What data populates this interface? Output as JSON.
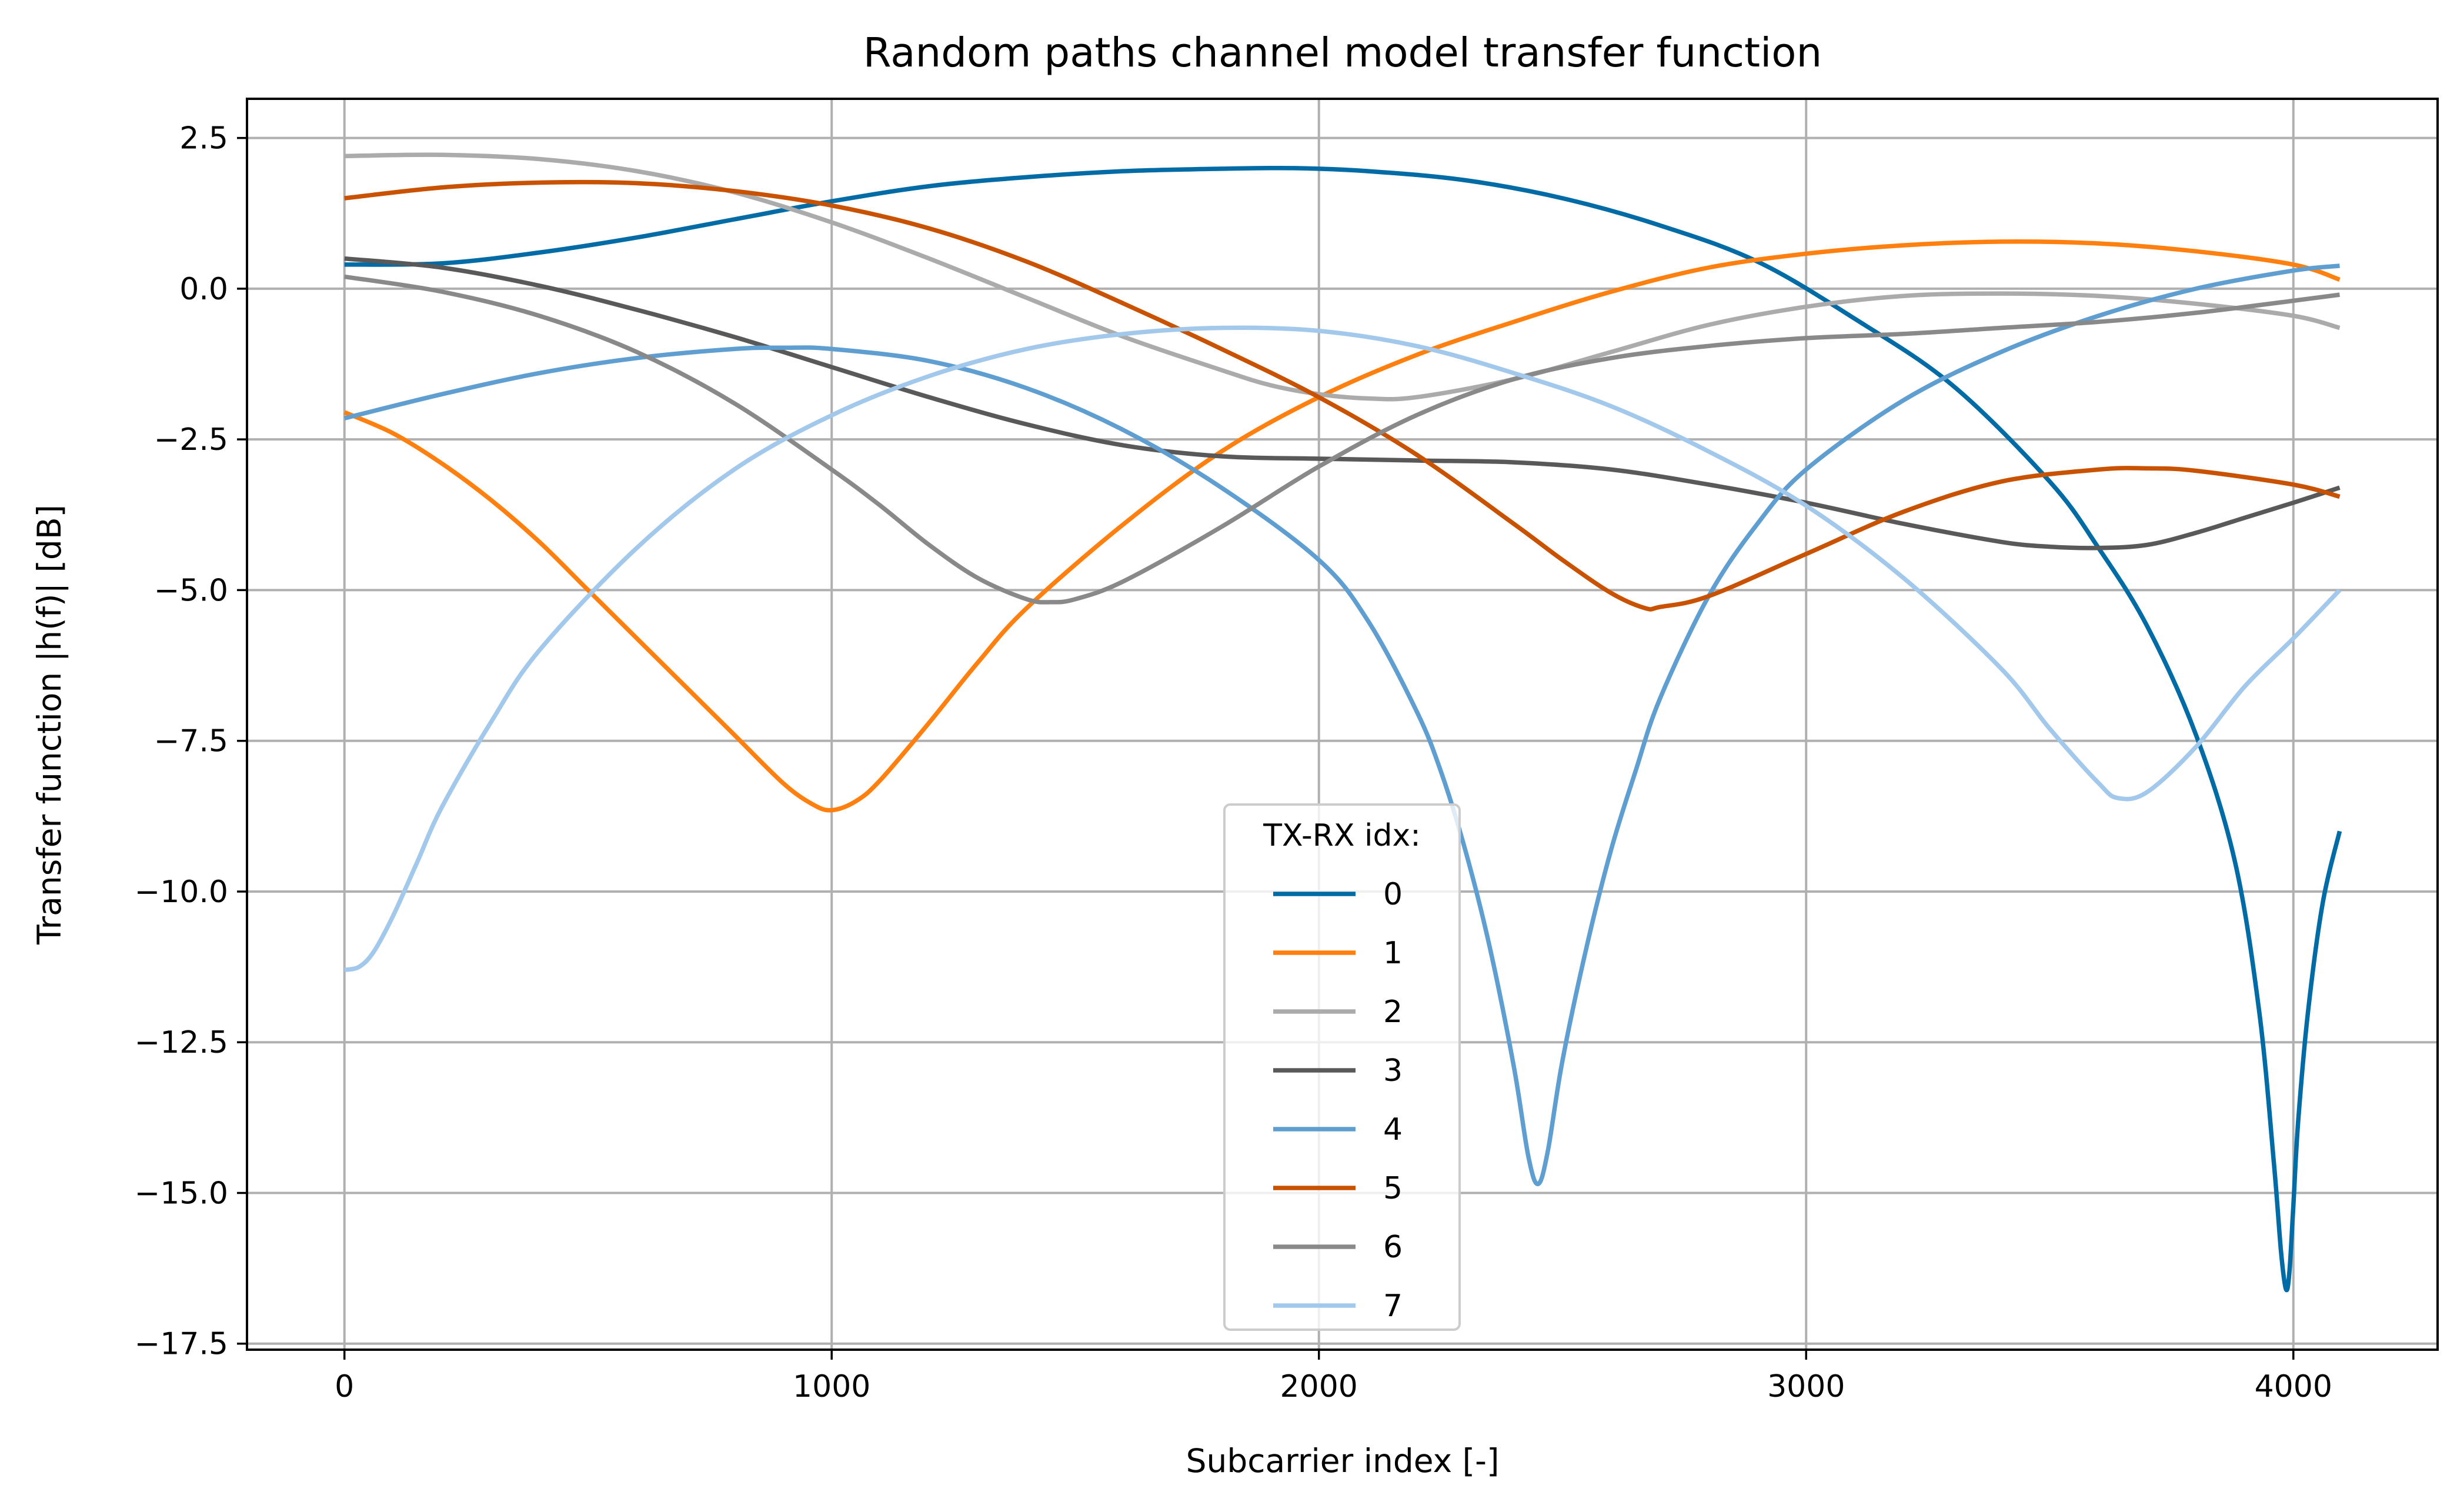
{
  "chart_data": {
    "type": "line",
    "title": "Random paths channel model transfer function",
    "xlabel": "Subcarrier index [-]",
    "ylabel": "Transfer function |h(f)| [dB]",
    "xlim": [
      -200,
      4296
    ],
    "ylim": [
      -17.6,
      3.15
    ],
    "xticks": [
      0,
      1000,
      2000,
      3000,
      4000
    ],
    "xtick_labels": [
      "0",
      "1000",
      "2000",
      "3000",
      "4000"
    ],
    "yticks": [
      2.5,
      0,
      -2.5,
      -5,
      -7.5,
      -10,
      -12.5,
      -15,
      -17.5
    ],
    "ytick_labels": [
      "2.5",
      "0.0",
      "−2.5",
      "−5.0",
      "−7.5",
      "−10.0",
      "−12.5",
      "−15.0",
      "−17.5"
    ],
    "grid": true,
    "legend": {
      "title": "TX-RX idx:",
      "placement": "lower-center"
    },
    "series": [
      {
        "name": "0",
        "color": "#006BA4",
        "x": [
          0,
          200,
          400,
          600,
          800,
          1000,
          1200,
          1400,
          1600,
          1800,
          1950,
          2100,
          2300,
          2500,
          2700,
          2900,
          3100,
          3300,
          3500,
          3600,
          3700,
          3800,
          3880,
          3930,
          3960,
          3975,
          3985,
          3992,
          4000,
          4010,
          4030,
          4060,
          4095
        ],
        "y": [
          0.4,
          0.42,
          0.6,
          0.85,
          1.15,
          1.45,
          1.7,
          1.85,
          1.95,
          1.99,
          2.0,
          1.95,
          1.8,
          1.5,
          1.05,
          0.45,
          -0.5,
          -1.6,
          -3.2,
          -4.3,
          -5.6,
          -7.4,
          -9.5,
          -12.0,
          -14.5,
          -16.0,
          -16.6,
          -16.3,
          -15.2,
          -13.8,
          -12.0,
          -10.2,
          -9.0
        ]
      },
      {
        "name": "1",
        "color": "#FF800E",
        "x": [
          0,
          100,
          200,
          300,
          400,
          500,
          600,
          700,
          800,
          900,
          960,
          1000,
          1050,
          1100,
          1200,
          1300,
          1400,
          1600,
          1800,
          2000,
          2200,
          2400,
          2600,
          2800,
          3000,
          3200,
          3400,
          3600,
          3800,
          4000,
          4095
        ],
        "y": [
          -2.05,
          -2.4,
          -2.9,
          -3.5,
          -4.2,
          -5.0,
          -5.8,
          -6.6,
          -7.4,
          -8.2,
          -8.55,
          -8.65,
          -8.5,
          -8.15,
          -7.2,
          -6.2,
          -5.3,
          -3.9,
          -2.7,
          -1.8,
          -1.1,
          -0.55,
          -0.05,
          0.35,
          0.58,
          0.72,
          0.78,
          0.75,
          0.62,
          0.4,
          0.15
        ]
      },
      {
        "name": "2",
        "color": "#ABABAB",
        "x": [
          0,
          200,
          400,
          600,
          800,
          1000,
          1200,
          1400,
          1600,
          1800,
          1900,
          2000,
          2100,
          2200,
          2400,
          2600,
          2800,
          3000,
          3200,
          3400,
          3600,
          3800,
          4000,
          4095
        ],
        "y": [
          2.2,
          2.22,
          2.15,
          1.95,
          1.6,
          1.1,
          0.5,
          -0.15,
          -0.8,
          -1.35,
          -1.6,
          -1.75,
          -1.82,
          -1.8,
          -1.5,
          -1.05,
          -0.6,
          -0.3,
          -0.12,
          -0.08,
          -0.12,
          -0.25,
          -0.45,
          -0.65
        ]
      },
      {
        "name": "3",
        "color": "#595959",
        "x": [
          0,
          200,
          400,
          600,
          800,
          1000,
          1200,
          1400,
          1600,
          1800,
          2000,
          2200,
          2400,
          2600,
          2800,
          3000,
          3200,
          3400,
          3500,
          3600,
          3700,
          3800,
          3900,
          4000,
          4095
        ],
        "y": [
          0.5,
          0.35,
          0.05,
          -0.35,
          -0.8,
          -1.3,
          -1.8,
          -2.25,
          -2.6,
          -2.78,
          -2.82,
          -2.85,
          -2.88,
          -3.0,
          -3.25,
          -3.55,
          -3.9,
          -4.2,
          -4.28,
          -4.3,
          -4.25,
          -4.05,
          -3.8,
          -3.55,
          -3.3
        ]
      },
      {
        "name": "4",
        "color": "#5F9ED1",
        "x": [
          0,
          200,
          400,
          600,
          800,
          900,
          1000,
          1200,
          1400,
          1600,
          1800,
          2000,
          2100,
          2200,
          2250,
          2300,
          2350,
          2400,
          2430,
          2450,
          2470,
          2500,
          2550,
          2600,
          2650,
          2700,
          2800,
          2900,
          3000,
          3200,
          3400,
          3600,
          3800,
          4000,
          4095
        ],
        "y": [
          -2.15,
          -1.75,
          -1.4,
          -1.15,
          -1.0,
          -0.98,
          -1.0,
          -1.2,
          -1.65,
          -2.35,
          -3.3,
          -4.5,
          -5.5,
          -7.0,
          -8.0,
          -9.3,
          -10.9,
          -12.9,
          -14.4,
          -14.85,
          -14.3,
          -12.8,
          -10.9,
          -9.3,
          -8.0,
          -6.8,
          -5.1,
          -3.9,
          -3.0,
          -1.85,
          -1.05,
          -0.45,
          0.0,
          0.3,
          0.38
        ]
      },
      {
        "name": "5",
        "color": "#C85200",
        "x": [
          0,
          200,
          400,
          600,
          800,
          1000,
          1200,
          1400,
          1600,
          1800,
          2000,
          2200,
          2400,
          2500,
          2600,
          2670,
          2700,
          2800,
          3000,
          3200,
          3400,
          3600,
          3700,
          3800,
          4000,
          4095
        ],
        "y": [
          1.5,
          1.68,
          1.76,
          1.75,
          1.62,
          1.38,
          1.0,
          0.45,
          -0.25,
          -1.0,
          -1.8,
          -2.75,
          -3.9,
          -4.5,
          -5.05,
          -5.3,
          -5.28,
          -5.1,
          -4.4,
          -3.7,
          -3.2,
          -3.0,
          -2.98,
          -3.02,
          -3.25,
          -3.45
        ]
      },
      {
        "name": "6",
        "color": "#898989",
        "x": [
          0,
          200,
          400,
          600,
          800,
          1000,
          1100,
          1200,
          1300,
          1400,
          1450,
          1500,
          1600,
          1800,
          2000,
          2200,
          2400,
          2600,
          2800,
          3000,
          3200,
          3400,
          3600,
          3800,
          4000,
          4095
        ],
        "y": [
          0.2,
          -0.05,
          -0.45,
          -1.05,
          -1.9,
          -3.0,
          -3.6,
          -4.25,
          -4.8,
          -5.15,
          -5.2,
          -5.15,
          -4.85,
          -3.95,
          -2.95,
          -2.1,
          -1.5,
          -1.15,
          -0.95,
          -0.82,
          -0.75,
          -0.65,
          -0.55,
          -0.4,
          -0.2,
          -0.1
        ]
      },
      {
        "name": "7",
        "color": "#A2C8EC",
        "x": [
          0,
          30,
          60,
          100,
          150,
          200,
          300,
          400,
          600,
          800,
          1000,
          1200,
          1400,
          1600,
          1800,
          2000,
          2200,
          2400,
          2600,
          2800,
          3000,
          3200,
          3400,
          3500,
          3600,
          3640,
          3700,
          3800,
          3900,
          4000,
          4095
        ],
        "y": [
          -11.3,
          -11.25,
          -11.0,
          -10.4,
          -9.5,
          -8.6,
          -7.2,
          -6.0,
          -4.3,
          -3.0,
          -2.1,
          -1.45,
          -1.0,
          -0.75,
          -0.65,
          -0.7,
          -0.95,
          -1.4,
          -1.95,
          -2.7,
          -3.6,
          -4.8,
          -6.3,
          -7.3,
          -8.2,
          -8.45,
          -8.35,
          -7.6,
          -6.6,
          -5.8,
          -5.0
        ]
      }
    ]
  }
}
